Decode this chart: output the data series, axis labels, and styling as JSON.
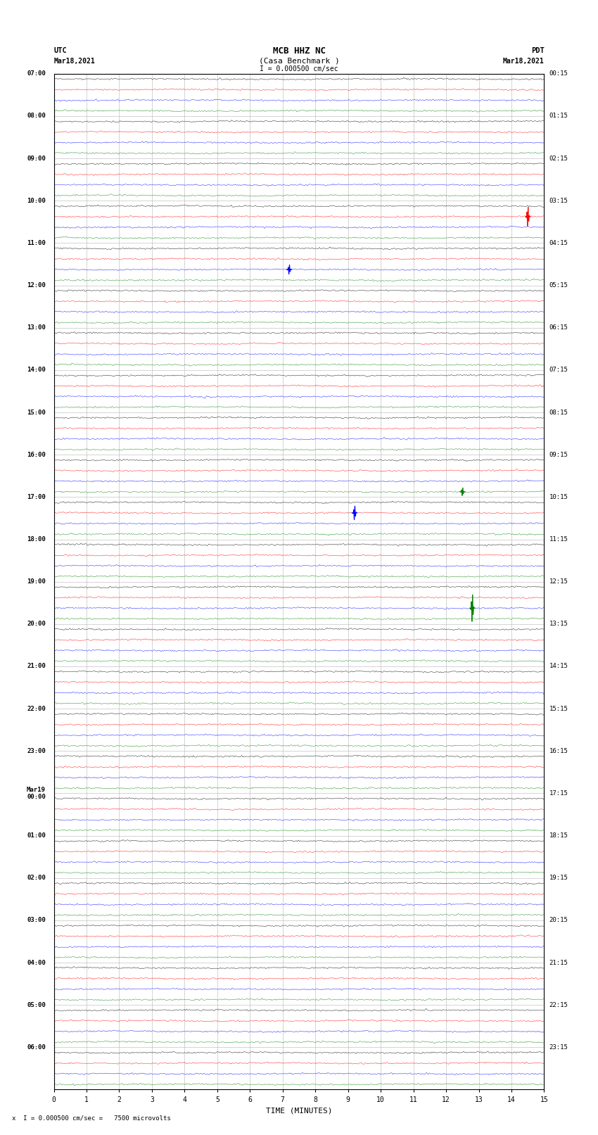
{
  "title_line1": "MCB HHZ NC",
  "title_line2": "(Casa Benchmark )",
  "scale_text": "I = 0.000500 cm/sec",
  "bottom_text": "x  I = 0.000500 cm/sec =   7500 microvolts",
  "left_label": "UTC",
  "left_date": "Mar18,2021",
  "right_label": "PDT",
  "right_date": "Mar18,2021",
  "xlabel": "TIME (MINUTES)",
  "left_times": [
    "07:00",
    "08:00",
    "09:00",
    "10:00",
    "11:00",
    "12:00",
    "13:00",
    "14:00",
    "15:00",
    "16:00",
    "17:00",
    "18:00",
    "19:00",
    "20:00",
    "21:00",
    "22:00",
    "23:00",
    "Mar19\n00:00",
    "01:00",
    "02:00",
    "03:00",
    "04:00",
    "05:00",
    "06:00"
  ],
  "right_times": [
    "00:15",
    "01:15",
    "02:15",
    "03:15",
    "04:15",
    "05:15",
    "06:15",
    "07:15",
    "08:15",
    "09:15",
    "10:15",
    "11:15",
    "12:15",
    "13:15",
    "14:15",
    "15:15",
    "16:15",
    "17:15",
    "18:15",
    "19:15",
    "20:15",
    "21:15",
    "22:15",
    "23:15"
  ],
  "trace_colors": [
    "black",
    "red",
    "blue",
    "green"
  ],
  "num_groups": 24,
  "traces_per_group": 4,
  "bg_color": "white",
  "grid_color": "#aaaaaa",
  "xmin": 0,
  "xmax": 15,
  "noise_amplitude": 0.018,
  "special_events": [
    {
      "group": 3,
      "trace": 1,
      "time": 14.5,
      "color": "red",
      "amplitude": 0.25
    },
    {
      "group": 4,
      "trace": 2,
      "time": 7.2,
      "color": "blue",
      "amplitude": 0.12
    },
    {
      "group": 9,
      "trace": 3,
      "time": 12.5,
      "color": "green",
      "amplitude": 0.1
    },
    {
      "group": 10,
      "trace": 1,
      "time": 9.2,
      "color": "blue",
      "amplitude": 0.18
    },
    {
      "group": 12,
      "trace": 2,
      "time": 12.8,
      "color": "green",
      "amplitude": 0.35
    }
  ]
}
